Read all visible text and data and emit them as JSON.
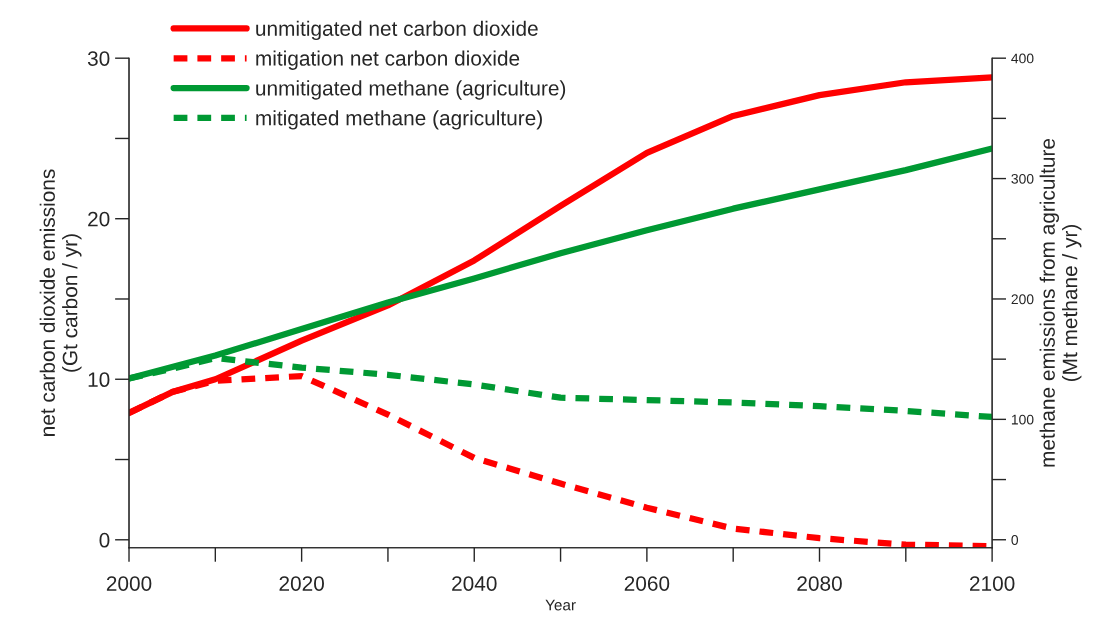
{
  "chart_data": {
    "type": "line",
    "xlabel": "Year",
    "ylabel": "net carbon dioxide emissions\n(Gt carbon / yr)",
    "y2label": "methane emissions from agriculture\n(Mt methane / yr)",
    "xlim": [
      2000,
      2100
    ],
    "xticks": [
      2000,
      {
        "value": 2010,
        "label": null
      },
      2020,
      {
        "value": 2030,
        "label": null
      },
      2040,
      {
        "value": 2050,
        "label": null
      },
      2060,
      {
        "value": 2070,
        "label": null
      },
      2080,
      {
        "value": 2090,
        "label": null
      },
      2100
    ],
    "ylim": [
      -0.5,
      30
    ],
    "yticks": [
      0,
      {
        "value": 5,
        "label": null
      },
      10,
      {
        "value": 15,
        "label": null
      },
      20,
      {
        "value": 25,
        "label": null
      },
      30
    ],
    "y2lim": [
      -6.7,
      400
    ],
    "y2ticks": [
      0,
      {
        "value": 50,
        "label": null
      },
      100,
      {
        "value": 150,
        "label": null
      },
      200,
      {
        "value": 250,
        "label": null
      },
      300,
      {
        "value": 350,
        "label": null
      },
      400
    ],
    "legend": "top left",
    "grid": false,
    "series": [
      {
        "name": "unmitigated net carbon dioxide",
        "color": "#ff0000",
        "line_style": "solid",
        "x": [
          2000,
          2005,
          2010,
          2020,
          2030,
          2040,
          2050,
          2060,
          2070,
          2080,
          2090,
          2100
        ],
        "values": [
          7.9,
          9.2,
          10,
          12.4,
          14.6,
          17.4,
          20.8,
          24.1,
          26.4,
          27.7,
          28.5,
          28.8
        ]
      },
      {
        "name": "mitigation net carbon dioxide",
        "color": "#ff0000",
        "line_style": "dashed",
        "x": [
          2000,
          2005,
          2010,
          2020,
          2030,
          2040,
          2050,
          2060,
          2070,
          2080,
          2090,
          2100
        ],
        "values": [
          7.9,
          9.2,
          9.9,
          10.2,
          7.8,
          5.1,
          3.5,
          2.0,
          0.7,
          0.1,
          -0.3,
          -0.4
        ]
      },
      {
        "name": "unmitigated methane (agriculture)",
        "color": "#009933",
        "line_style": "solid",
        "axis": "y2",
        "x": [
          2000,
          2010,
          2020,
          2030,
          2040,
          2050,
          2060,
          2070,
          2080,
          2090,
          2100
        ],
        "values": [
          134,
          153,
          175,
          197,
          217,
          238,
          257,
          275,
          291,
          307,
          325
        ]
      },
      {
        "name": "mitigated methane (agriculture)",
        "color": "#009933",
        "line_style": "dashed",
        "axis": "y2",
        "x": [
          2000,
          2005,
          2010,
          2020,
          2030,
          2040,
          2050,
          2060,
          2070,
          2080,
          2090,
          2100
        ],
        "values": [
          134,
          142,
          151,
          143,
          137,
          129,
          118,
          116,
          114,
          111,
          107,
          102
        ]
      }
    ]
  }
}
